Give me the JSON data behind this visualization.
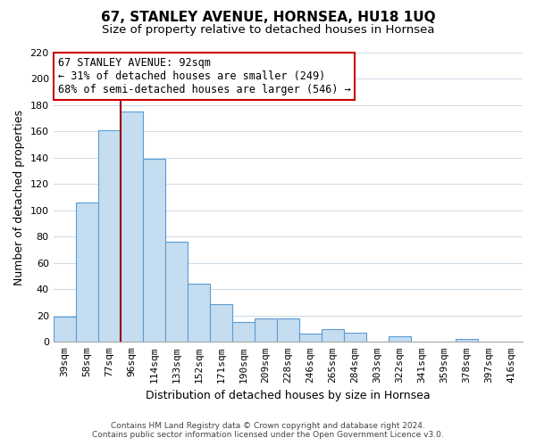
{
  "title": "67, STANLEY AVENUE, HORNSEA, HU18 1UQ",
  "subtitle": "Size of property relative to detached houses in Hornsea",
  "xlabel": "Distribution of detached houses by size in Hornsea",
  "ylabel": "Number of detached properties",
  "categories": [
    "39sqm",
    "58sqm",
    "77sqm",
    "96sqm",
    "114sqm",
    "133sqm",
    "152sqm",
    "171sqm",
    "190sqm",
    "209sqm",
    "228sqm",
    "246sqm",
    "265sqm",
    "284sqm",
    "303sqm",
    "322sqm",
    "341sqm",
    "359sqm",
    "378sqm",
    "397sqm",
    "416sqm"
  ],
  "values": [
    19,
    106,
    161,
    175,
    139,
    76,
    44,
    29,
    15,
    18,
    18,
    6,
    10,
    7,
    0,
    4,
    0,
    0,
    2,
    0,
    0
  ],
  "bar_color": "#c5ddf0",
  "bar_edge_color": "#5b9bd5",
  "vline_color": "#990000",
  "vline_pos": 2.5,
  "ylim": [
    0,
    220
  ],
  "yticks": [
    0,
    20,
    40,
    60,
    80,
    100,
    120,
    140,
    160,
    180,
    200,
    220
  ],
  "annotation_title": "67 STANLEY AVENUE: 92sqm",
  "annotation_line1": "← 31% of detached houses are smaller (249)",
  "annotation_line2": "68% of semi-detached houses are larger (546) →",
  "annotation_box_color": "#ffffff",
  "annotation_box_edge": "#cc0000",
  "footer1": "Contains HM Land Registry data © Crown copyright and database right 2024.",
  "footer2": "Contains public sector information licensed under the Open Government Licence v3.0.",
  "bg_color": "#ffffff",
  "grid_color": "#d0dde8",
  "title_fontsize": 11,
  "subtitle_fontsize": 9.5,
  "ylabel_fontsize": 9,
  "xlabel_fontsize": 9,
  "tick_fontsize": 8,
  "annotation_fontsize": 8.5
}
